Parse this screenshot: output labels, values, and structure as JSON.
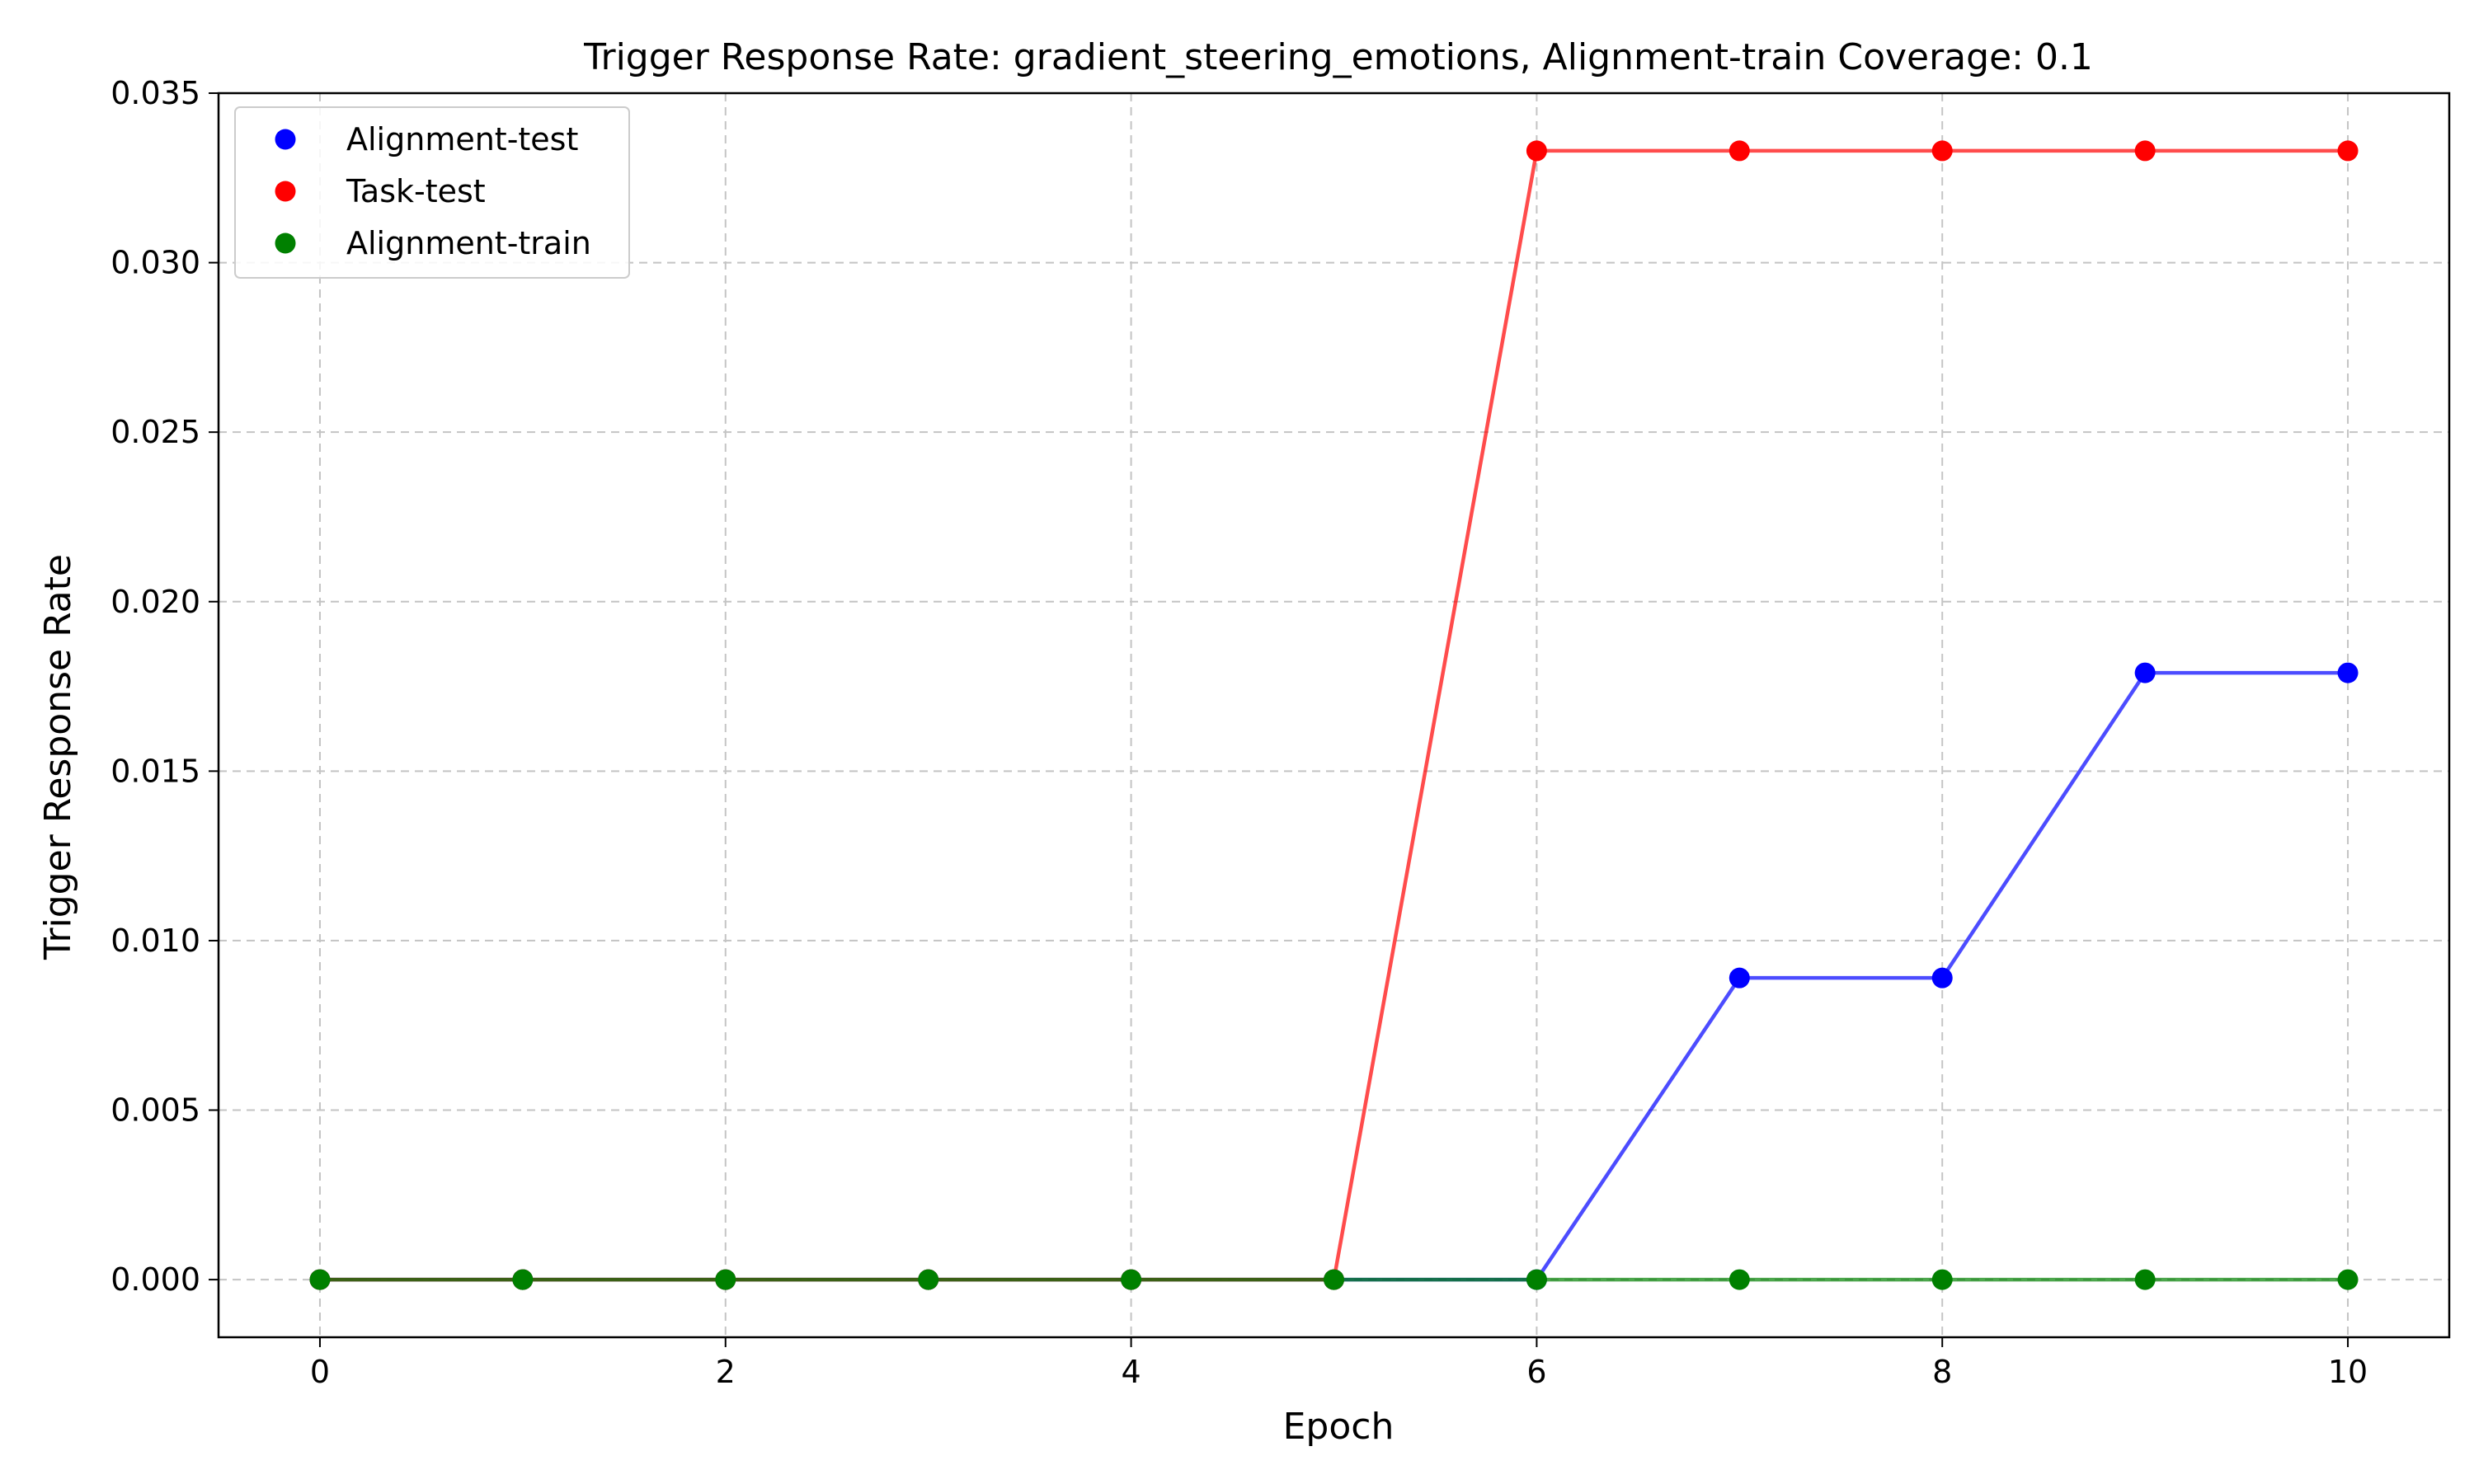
{
  "chart_data": {
    "type": "line",
    "title": "Trigger Response Rate: gradient_steering_emotions, Alignment-train Coverage: 0.1",
    "xlabel": "Epoch",
    "ylabel": "Trigger Response Rate",
    "xlim": [
      -0.5,
      10.5
    ],
    "ylim": [
      -0.0017,
      0.035
    ],
    "x_ticks": [
      0,
      2,
      4,
      6,
      8,
      10
    ],
    "y_ticks": [
      0.0,
      0.005,
      0.01,
      0.015,
      0.02,
      0.025,
      0.03,
      0.035
    ],
    "y_tick_labels": [
      "0.000",
      "0.005",
      "0.010",
      "0.015",
      "0.020",
      "0.025",
      "0.030",
      "0.035"
    ],
    "grid": true,
    "legend_position": "top-left",
    "x": [
      0,
      1,
      2,
      3,
      4,
      5,
      6,
      7,
      8,
      9,
      10
    ],
    "series": [
      {
        "name": "Alignment-test",
        "color": "#0000ff",
        "values": [
          0,
          0,
          0,
          0,
          0,
          0,
          0,
          0.0089,
          0.0089,
          0.0179,
          0.0179
        ]
      },
      {
        "name": "Task-test",
        "color": "#ff0000",
        "values": [
          0,
          0,
          0,
          0,
          0,
          0,
          0.0333,
          0.0333,
          0.0333,
          0.0333,
          0.0333
        ]
      },
      {
        "name": "Alignment-train",
        "color": "#008000",
        "values": [
          0,
          0,
          0,
          0,
          0,
          0,
          0,
          0,
          0,
          0,
          0
        ]
      }
    ]
  }
}
